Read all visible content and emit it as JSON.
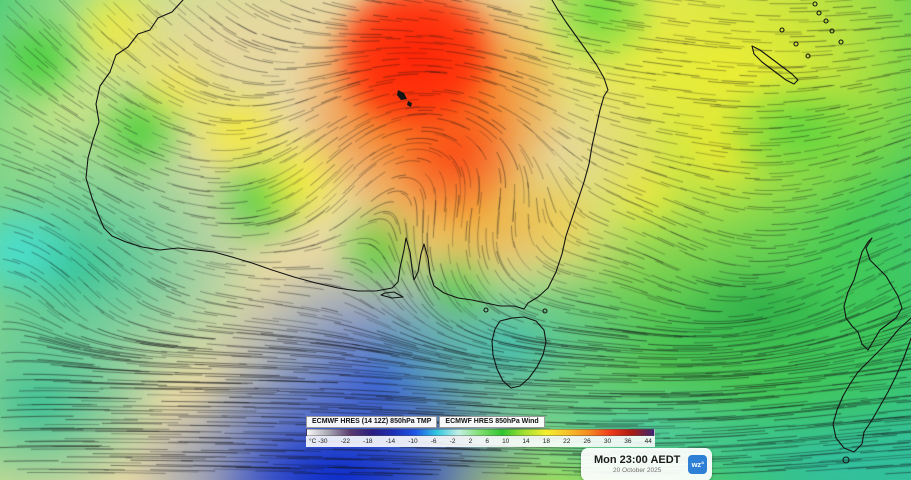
{
  "map": {
    "description": "850hPa temperature and wind streamlines over Australia, Tasman Sea and New Zealand",
    "landmarks": [
      "Australia",
      "Tasmania",
      "New Zealand",
      "New Caledonia"
    ]
  },
  "legend": {
    "tmp_label": "ECMWF HRES (14 12Z) 850hPa TMP",
    "wind_label": "ECMWF HRES 850hPa Wind",
    "unit_label": "°C",
    "ticks": [
      "-30",
      "-22",
      "-18",
      "-14",
      "-10",
      "-6",
      "-2",
      "2",
      "6",
      "10",
      "14",
      "18",
      "22",
      "26",
      "30",
      "36",
      "44"
    ],
    "colorbar_colors": [
      "#f8f8f8",
      "#a6a6b2",
      "#5a3a6e",
      "#2a1c80",
      "#1c2fb6",
      "#1e55e6",
      "#32c8e0",
      "#c2efe4",
      "#7ede6e",
      "#2fc42f",
      "#a0df32",
      "#f4ef2e",
      "#f6c22a",
      "#f48a20",
      "#ee3a1a",
      "#a81a14",
      "#3a2472"
    ]
  },
  "timestamp": {
    "time": "Mon 23:00 AEDT",
    "date": "20 October 2025"
  },
  "branding": {
    "logo_text": "wz°",
    "logo_color": "#2d80d6"
  }
}
